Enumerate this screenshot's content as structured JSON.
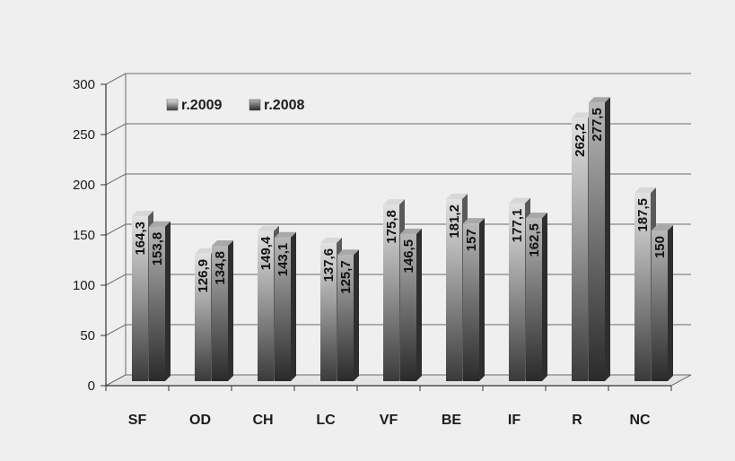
{
  "chart_data": {
    "type": "bar",
    "title": "",
    "xlabel": "",
    "ylabel": "",
    "ylim": [
      0,
      300
    ],
    "yticks": [
      0,
      50,
      100,
      150,
      200,
      250,
      300
    ],
    "grid": true,
    "legend_position": "top-left",
    "categories": [
      "SF",
      "OD",
      "CH",
      "LC",
      "VF",
      "BE",
      "IF",
      "R",
      "NC"
    ],
    "series": [
      {
        "name": "r.2009",
        "values": [
          164.3,
          126.9,
          149.4,
          137.6,
          175.8,
          181.2,
          177.1,
          262.2,
          187.5
        ],
        "labels": [
          "164,3",
          "126,9",
          "149,4",
          "137,6",
          "175,8",
          "181,2",
          "177,1",
          "262,2",
          "187,5"
        ],
        "color": "#c4c4c4"
      },
      {
        "name": "r.2008",
        "values": [
          153.8,
          134.8,
          143.1,
          125.7,
          146.5,
          157,
          162.5,
          277.5,
          150
        ],
        "labels": [
          "153,8",
          "134,8",
          "143,1",
          "125,7",
          "146,5",
          "157",
          "162,5",
          "277,5",
          "150"
        ],
        "color": "#8a8a8a"
      }
    ]
  }
}
